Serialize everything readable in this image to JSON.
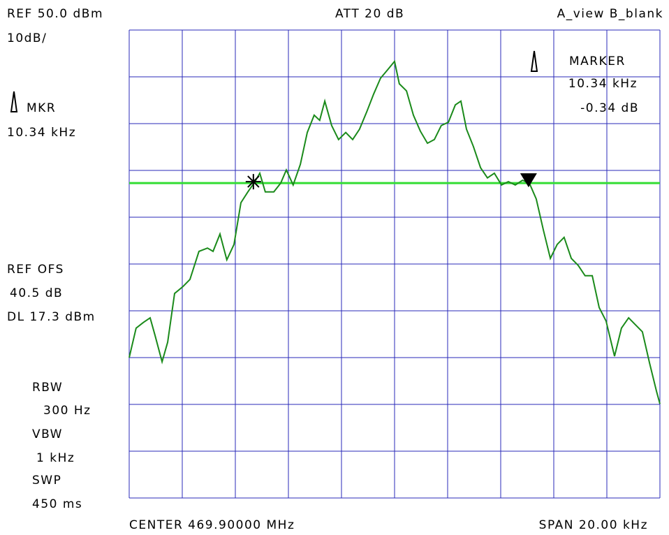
{
  "chart_data": {
    "type": "line",
    "annotations": [
      "REF 50.0 dBm",
      "10dB/",
      "ATT 20 dB",
      "A_view B_blank",
      "MARKER",
      "10.34 kHz",
      "-0.34 dB",
      "MKR",
      "10.34 kHz",
      "REF OFS",
      "40.5 dB",
      "DL 17.3 dBm",
      "RBW",
      "300 Hz",
      "VBW",
      "1 kHz",
      "SWP",
      "450 ms",
      "CENTER 469.90000 MHz",
      "SPAN 20.00 kHz"
    ],
    "xlim": [
      -10,
      10
    ],
    "ylim": [
      -50,
      50
    ],
    "xgrid": [
      -10,
      -8,
      -6,
      -4,
      -2,
      0,
      2,
      4,
      6,
      8,
      10
    ],
    "ygrid": [
      -50,
      -40,
      -30,
      -20,
      -10,
      0,
      10,
      20,
      30,
      40,
      50
    ],
    "grid_color": "#2a2ab8",
    "display_line": {
      "value": 17.3,
      "color": "#33dd33"
    },
    "series": [
      {
        "color": "#1a8a1a",
        "x": [
          -10,
          -9.74,
          -9.47,
          -9.21,
          -9.03,
          -8.76,
          -8.55,
          -8.29,
          -7.97,
          -7.71,
          -7.37,
          -7.05,
          -6.84,
          -6.58,
          -6.32,
          -6.05,
          -5.79,
          -5.53,
          -5.26,
          -5.08,
          -4.87,
          -4.55,
          -4.29,
          -4.08,
          -3.82,
          -3.55,
          -3.29,
          -3.03,
          -2.82,
          -2.63,
          -2.37,
          -2.11,
          -1.84,
          -1.58,
          -1.32,
          -1.05,
          -0.79,
          -0.53,
          -0.26,
          0,
          0.18,
          0.45,
          0.71,
          0.97,
          1.24,
          1.5,
          1.76,
          2.03,
          2.29,
          2.5,
          2.71,
          2.97,
          3.24,
          3.5,
          3.76,
          4.03,
          4.29,
          4.55,
          4.82,
          5.08,
          5.34,
          5.61,
          5.87,
          6.13,
          6.39,
          6.66,
          6.92,
          7.18,
          7.45,
          7.71,
          7.97,
          8.29,
          8.55,
          8.82,
          9.08,
          9.34,
          9.61,
          9.87,
          10
        ],
        "values": [
          -20,
          -13.7,
          -12.5,
          -11.5,
          -15.2,
          -20.9,
          -16.7,
          -6.3,
          -4.8,
          -3.3,
          2.7,
          3.4,
          2.7,
          6.4,
          0.9,
          4.2,
          13.1,
          15.4,
          17.6,
          19.4,
          15.4,
          15.4,
          17.3,
          20.1,
          16.9,
          21.3,
          28.1,
          31.8,
          30.7,
          34.8,
          29.6,
          26.6,
          28.1,
          26.6,
          28.8,
          32.5,
          36.3,
          39.7,
          41.5,
          43.3,
          38.5,
          37.0,
          31.8,
          28.4,
          25.8,
          26.6,
          29.6,
          30.3,
          34.0,
          34.8,
          28.8,
          25.1,
          20.6,
          18.4,
          19.4,
          16.9,
          17.6,
          16.9,
          17.9,
          17.3,
          13.9,
          7.2,
          1.2,
          4.2,
          5.7,
          1.2,
          -0.3,
          -2.5,
          -2.5,
          -9.3,
          -12.2,
          -19.7,
          -13.7,
          -11.5,
          -13.0,
          -14.5,
          -21.2,
          -27.2,
          -29.9
        ]
      }
    ],
    "markers": [
      {
        "x": -5.32,
        "y": 17.6
      },
      {
        "x": 5.05,
        "y": 17.3
      }
    ]
  }
}
